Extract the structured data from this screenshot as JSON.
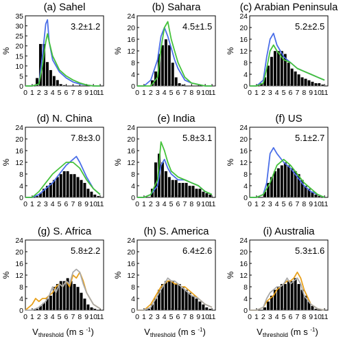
{
  "chart_data": {
    "type": "bar",
    "ylabel": "%",
    "xlabel": {
      "main": "V",
      "subscript": "threshold",
      "units": "(m s",
      "units_sup": "-1",
      "units_close": ")"
    },
    "xticks": [
      "0",
      "1",
      "2",
      "3",
      "4",
      "5",
      "6",
      "7",
      "8",
      "9",
      "10",
      "11"
    ],
    "colors": {
      "bar": "#000000",
      "blue": "#4a6ee8",
      "green": "#44c23a",
      "orange": "#e8a01a",
      "gray": "#aaaaaa"
    },
    "panels": [
      {
        "title": "(a) Sahel",
        "annotation": "3.2±1.2",
        "ylim": [
          0,
          35
        ],
        "yticks": [
          "0",
          "5",
          "10",
          "15",
          "20",
          "25",
          "30",
          "35"
        ],
        "bars": [
          0,
          0,
          0,
          4,
          21,
          21,
          12,
          8,
          5,
          3,
          1,
          0.5,
          0,
          0
        ],
        "lines": [
          {
            "color": "blue",
            "x": [
              0,
              1,
              2,
              2.5,
              3,
              3.25,
              3.5,
              4,
              5,
              6,
              7,
              8,
              9,
              10,
              11
            ],
            "y": [
              0,
              0,
              1,
              15,
              31,
              33,
              22,
              13,
              7,
              4,
              2,
              1,
              0.5,
              0,
              0
            ]
          },
          {
            "color": "green",
            "x": [
              0,
              1,
              2,
              2.5,
              3,
              3.25,
              3.5,
              4,
              5,
              6,
              7,
              8,
              9,
              10,
              11
            ],
            "y": [
              0,
              0,
              1,
              10,
              22,
              26,
              22,
              15,
              8,
              5,
              3,
              1.5,
              0.5,
              0,
              0
            ]
          }
        ]
      },
      {
        "title": "(b) Sahara",
        "annotation": "4.5±1.5",
        "ylim": [
          0,
          24
        ],
        "yticks": [
          "0",
          "4",
          "8",
          "12",
          "16",
          "20",
          "24"
        ],
        "bars": [
          0,
          0,
          0,
          0,
          2,
          5,
          11,
          14,
          16,
          14,
          8,
          3,
          1,
          0.5,
          0,
          0,
          0,
          0,
          0,
          0,
          0,
          0
        ],
        "lines": [
          {
            "color": "blue",
            "x": [
              0,
              1,
              2,
              3,
              3.5,
              4,
              4.5,
              5,
              5.5,
              6,
              7,
              8,
              9,
              10,
              11
            ],
            "y": [
              0,
              0,
              2,
              9,
              17,
              20,
              17,
              13,
              9,
              6,
              2,
              1,
              0.5,
              0,
              0
            ]
          },
          {
            "color": "green",
            "x": [
              0,
              1,
              2,
              3,
              3.5,
              4,
              4.5,
              5,
              5.5,
              6,
              7,
              8,
              9,
              10,
              11
            ],
            "y": [
              0,
              0,
              0,
              3,
              13,
              20,
              22,
              16,
              12,
              8,
              3,
              1,
              0.5,
              0,
              0
            ]
          }
        ]
      },
      {
        "title": "(c) Arabian Peninsula",
        "annotation": "5.2±2.5",
        "ylim": [
          0,
          24
        ],
        "yticks": [
          "0",
          "4",
          "8",
          "12",
          "16",
          "20",
          "24"
        ],
        "bars": [
          0,
          0,
          0,
          1,
          3,
          7,
          10,
          12,
          12,
          12,
          11,
          8,
          6,
          5,
          4,
          3,
          2.5,
          2,
          1.5,
          1,
          1,
          0.5
        ],
        "lines": [
          {
            "color": "blue",
            "x": [
              0,
              1,
              2,
              2.5,
              3,
              3.5,
              4,
              5,
              6,
              7,
              8,
              9,
              10,
              11
            ],
            "y": [
              0,
              0,
              2,
              10,
              16,
              18,
              14,
              10,
              8,
              6,
              5,
              4,
              3,
              2
            ]
          },
          {
            "color": "green",
            "x": [
              0,
              1,
              2,
              2.5,
              3,
              3.5,
              4,
              5,
              6,
              7,
              8,
              9,
              10,
              11
            ],
            "y": [
              0,
              0,
              1,
              6,
              12,
              14,
              12,
              9,
              8,
              6,
              5,
              4,
              3,
              2
            ]
          }
        ]
      },
      {
        "title": "(d) N. China",
        "annotation": "7.8±3.0",
        "ylim": [
          0,
          24
        ],
        "yticks": [
          "0",
          "4",
          "8",
          "12",
          "16",
          "20",
          "24"
        ],
        "bars": [
          0,
          0,
          0,
          0.5,
          1.5,
          3,
          4,
          5,
          6,
          7,
          8,
          9,
          9,
          8,
          8,
          7,
          6,
          5,
          3,
          2,
          1,
          0.5
        ],
        "lines": [
          {
            "color": "blue",
            "x": [
              0,
              1,
              2,
              3,
              4,
              5,
              6,
              7,
              7.5,
              8,
              9,
              10,
              11
            ],
            "y": [
              0,
              0,
              1,
              3,
              5,
              8,
              11,
              13,
              14,
              12,
              7,
              3,
              1
            ]
          },
          {
            "color": "green",
            "x": [
              0,
              1,
              2,
              3,
              4,
              5,
              6,
              7,
              8,
              9,
              10,
              11
            ],
            "y": [
              0,
              0,
              2,
              5,
              8,
              10,
              12,
              12,
              10,
              6,
              3,
              1
            ]
          }
        ]
      },
      {
        "title": "(e) India",
        "annotation": "5.8±3.1",
        "ylim": [
          0,
          24
        ],
        "yticks": [
          "0",
          "4",
          "8",
          "12",
          "16",
          "20",
          "24"
        ],
        "bars": [
          0,
          0,
          0,
          0,
          3,
          12,
          15,
          12,
          9,
          7,
          6,
          6,
          5,
          5,
          5,
          4,
          4,
          3,
          3,
          2,
          1.5,
          1
        ],
        "lines": [
          {
            "color": "blue",
            "x": [
              0,
              1,
              2,
              3,
              3.5,
              4,
              4.5,
              5,
              6,
              7,
              8,
              9,
              10,
              11
            ],
            "y": [
              0,
              0,
              1,
              4,
              11,
              13,
              10,
              8,
              6,
              6,
              5,
              4,
              2,
              1
            ]
          },
          {
            "color": "green",
            "x": [
              0,
              1,
              2,
              3,
              3.5,
              4,
              4.5,
              5,
              6,
              7,
              8,
              9,
              10,
              11
            ],
            "y": [
              0,
              0,
              1,
              6,
              19,
              16,
              12,
              9,
              7,
              6,
              5,
              4,
              2,
              1
            ]
          }
        ]
      },
      {
        "title": "(f) US",
        "annotation": "5.1±2.7",
        "ylim": [
          0,
          24
        ],
        "yticks": [
          "0",
          "4",
          "8",
          "12",
          "16",
          "20",
          "24"
        ],
        "bars": [
          0,
          0,
          0,
          0,
          2,
          5,
          7,
          9,
          10,
          11,
          12,
          11,
          10,
          9,
          8,
          6,
          4,
          3,
          2,
          1,
          0.5,
          0
        ],
        "lines": [
          {
            "color": "blue",
            "x": [
              0,
              1,
              2,
              2.5,
              3,
              3.5,
              4,
              5,
              6,
              7,
              8,
              9,
              10,
              11
            ],
            "y": [
              0,
              0,
              1,
              5,
              15,
              17,
              15,
              12,
              10,
              7,
              4,
              2,
              1,
              0
            ]
          },
          {
            "color": "green",
            "x": [
              0,
              1,
              2,
              3,
              4,
              5,
              6,
              7,
              8,
              9,
              10,
              11
            ],
            "y": [
              0,
              0,
              1,
              5,
              11,
              13,
              11,
              8,
              5,
              3,
              1,
              0
            ]
          }
        ]
      },
      {
        "title": "(g) S. Africa",
        "annotation": "5.8±2.2",
        "ylim": [
          0,
          24
        ],
        "yticks": [
          "0",
          "4",
          "8",
          "12",
          "16",
          "20",
          "24"
        ],
        "bars": [
          0,
          0,
          0,
          0.5,
          1.5,
          2.5,
          4,
          5,
          8,
          9,
          10,
          10,
          11,
          10,
          9,
          8,
          6,
          4,
          2,
          1,
          0.5,
          0
        ],
        "lines": [
          {
            "color": "orange",
            "x": [
              0,
              0.5,
              1,
              1.5,
              2,
              2.5,
              3,
              3.5,
              4,
              4.5,
              5,
              5.5,
              6,
              6.5,
              7,
              7.5,
              8,
              8.5,
              9,
              10,
              11
            ],
            "y": [
              0,
              1,
              2,
              4,
              3,
              4,
              4,
              5,
              6,
              8,
              9,
              8,
              10,
              8,
              12,
              11,
              13,
              10,
              6,
              2,
              0.5
            ]
          },
          {
            "color": "gray",
            "x": [
              0,
              1,
              2,
              3,
              3.5,
              4,
              4.5,
              5,
              5.5,
              6,
              6.5,
              7,
              7.5,
              8,
              8.5,
              9,
              10,
              11
            ],
            "y": [
              0,
              0,
              1,
              3,
              5,
              8,
              6,
              9,
              8,
              10,
              9,
              13,
              14,
              13,
              9,
              6,
              2,
              0.5
            ]
          }
        ]
      },
      {
        "title": "(h) S. America",
        "annotation": "6.4±2.6",
        "ylim": [
          0,
          24
        ],
        "yticks": [
          "0",
          "4",
          "8",
          "12",
          "16",
          "20",
          "24"
        ],
        "bars": [
          0,
          0,
          0,
          0.5,
          2,
          4,
          7,
          9,
          10,
          10,
          10,
          9,
          9,
          8,
          7,
          6,
          5,
          4,
          3,
          2,
          1,
          0.5
        ],
        "lines": [
          {
            "color": "orange",
            "x": [
              0,
              1,
              2,
              3,
              3.5,
              4,
              4.5,
              5,
              5.5,
              6,
              6.5,
              7,
              8,
              9,
              10,
              11
            ],
            "y": [
              0,
              0,
              2,
              6,
              8,
              9,
              10,
              10,
              9,
              9,
              8,
              8,
              6,
              4,
              2,
              1
            ]
          },
          {
            "color": "gray",
            "x": [
              0,
              1,
              2,
              3,
              3.5,
              4,
              4.5,
              5,
              5.5,
              6,
              6.5,
              7,
              8,
              9,
              10,
              11
            ],
            "y": [
              0,
              0,
              1,
              5,
              7,
              9,
              11,
              10,
              10,
              9,
              8,
              7,
              5,
              4,
              2,
              1
            ]
          }
        ]
      },
      {
        "title": "(i) Australia",
        "annotation": "5.3±1.6",
        "ylim": [
          0,
          24
        ],
        "yticks": [
          "0",
          "4",
          "8",
          "12",
          "16",
          "20",
          "24"
        ],
        "bars": [
          0,
          0,
          0,
          0,
          1,
          3,
          5,
          7,
          8,
          9,
          9,
          10,
          10,
          11,
          9,
          7,
          5,
          3,
          1.5,
          0.5,
          0,
          0
        ],
        "lines": [
          {
            "color": "orange",
            "x": [
              0,
              1,
              2,
              2.5,
              3,
              3.5,
              4,
              4.5,
              5,
              5.5,
              6,
              6.5,
              7,
              7.5,
              8,
              9,
              10,
              11
            ],
            "y": [
              0,
              0,
              1,
              3,
              4,
              5,
              7,
              8,
              9,
              10,
              10,
              11,
              13,
              11,
              7,
              2,
              0.5,
              0
            ]
          },
          {
            "color": "gray",
            "x": [
              0,
              1,
              2,
              2.5,
              3,
              3.5,
              4,
              4.5,
              5,
              5.5,
              6,
              6.5,
              7,
              7.5,
              8,
              9,
              10,
              11
            ],
            "y": [
              0,
              0,
              1,
              4,
              6,
              7,
              8,
              8,
              9,
              11,
              9,
              10,
              11,
              9,
              5,
              2,
              0.5,
              0
            ]
          }
        ]
      }
    ]
  }
}
